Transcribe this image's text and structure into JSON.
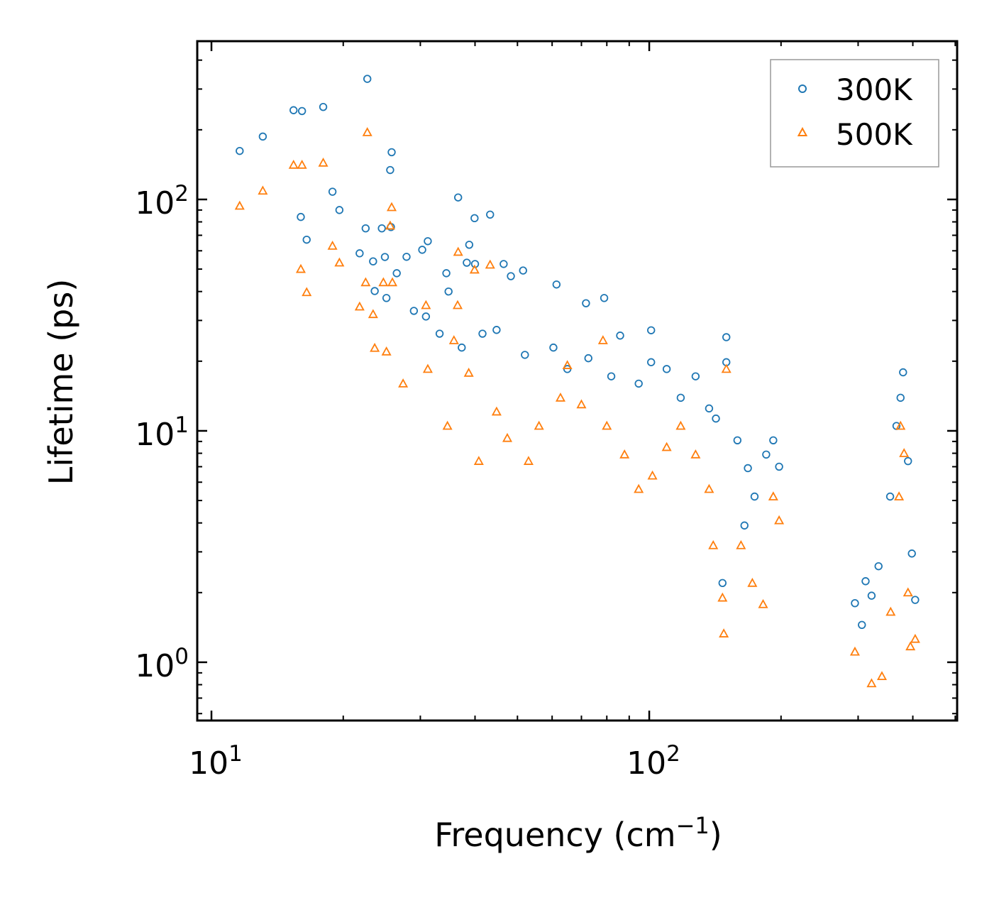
{
  "chart_data": {
    "type": "scatter",
    "title": "",
    "xlabel": "Frequency (cm",
    "xlabel_sup": "−1",
    "xlabel_end": ")",
    "ylabel": "Lifetime (ps)",
    "xscale": "log",
    "yscale": "log",
    "xlim": [
      9.28,
      505
    ],
    "ylim": [
      0.56,
      483
    ],
    "grid": false,
    "legend_position": "top-right",
    "x_ticks": [
      {
        "value": 10,
        "base": "10",
        "exp": "1"
      },
      {
        "value": 100,
        "base": "10",
        "exp": "2"
      }
    ],
    "y_ticks": [
      {
        "value": 1,
        "base": "10",
        "exp": "0"
      },
      {
        "value": 10,
        "base": "10",
        "exp": "1"
      },
      {
        "value": 100,
        "base": "10",
        "exp": "2"
      }
    ],
    "series": [
      {
        "name": "300K",
        "marker": "circle",
        "color": "#1f77b4",
        "points": [
          [
            11.6,
            162
          ],
          [
            13.1,
            187
          ],
          [
            15.4,
            243
          ],
          [
            16.1,
            241
          ],
          [
            18.0,
            251
          ],
          [
            22.7,
            332
          ],
          [
            18.9,
            108
          ],
          [
            19.6,
            90
          ],
          [
            16.0,
            84
          ],
          [
            16.5,
            67
          ],
          [
            25.8,
            160
          ],
          [
            25.6,
            134
          ],
          [
            22.5,
            75
          ],
          [
            24.5,
            75
          ],
          [
            25.7,
            76
          ],
          [
            21.8,
            58.5
          ],
          [
            23.4,
            54
          ],
          [
            24.9,
            56.4
          ],
          [
            25.1,
            37.5
          ],
          [
            23.6,
            40.2
          ],
          [
            26.5,
            48
          ],
          [
            27.9,
            56.5
          ],
          [
            31.2,
            66
          ],
          [
            30.3,
            60.6
          ],
          [
            36.6,
            102
          ],
          [
            39.9,
            83
          ],
          [
            43.3,
            86
          ],
          [
            38.8,
            63.7
          ],
          [
            38.3,
            53.3
          ],
          [
            40.0,
            52.6
          ],
          [
            46.5,
            52.6
          ],
          [
            48.3,
            46.6
          ],
          [
            51.5,
            49.3
          ],
          [
            61.4,
            42.9
          ],
          [
            71.7,
            35.6
          ],
          [
            78.9,
            37.5
          ],
          [
            34.4,
            48
          ],
          [
            34.8,
            40
          ],
          [
            29.0,
            33
          ],
          [
            30.9,
            31.2
          ],
          [
            33.2,
            26.3
          ],
          [
            37.3,
            22.9
          ],
          [
            41.6,
            26.3
          ],
          [
            44.8,
            27.3
          ],
          [
            52,
            21.3
          ],
          [
            60.4,
            22.9
          ],
          [
            65,
            18.5
          ],
          [
            72.6,
            20.6
          ],
          [
            81.9,
            17.2
          ],
          [
            85.8,
            25.8
          ],
          [
            94.6,
            16
          ],
          [
            101,
            27.2
          ],
          [
            101,
            19.8
          ],
          [
            109.6,
            18.5
          ],
          [
            118,
            13.9
          ],
          [
            127.6,
            17.2
          ],
          [
            137,
            12.5
          ],
          [
            150,
            25.4
          ],
          [
            150,
            19.8
          ],
          [
            142,
            11.3
          ],
          [
            159,
            9.1
          ],
          [
            168,
            6.9
          ],
          [
            185,
            7.9
          ],
          [
            192,
            9.1
          ],
          [
            198,
            7.0
          ],
          [
            174,
            5.2
          ],
          [
            165,
            3.9
          ],
          [
            147,
            2.2
          ],
          [
            295,
            1.8
          ],
          [
            312,
            2.24
          ],
          [
            334,
            2.6
          ],
          [
            355,
            5.2
          ],
          [
            367,
            10.5
          ],
          [
            380,
            17.9
          ],
          [
            375,
            13.9
          ],
          [
            390,
            7.4
          ],
          [
            398,
            2.95
          ],
          [
            405,
            1.86
          ],
          [
            306,
            1.45
          ],
          [
            322,
            1.94
          ]
        ]
      },
      {
        "name": "500K",
        "marker": "triangle",
        "color": "#ff7f0e",
        "points": [
          [
            11.6,
            93.8
          ],
          [
            13.1,
            109
          ],
          [
            15.4,
            141
          ],
          [
            16.1,
            141
          ],
          [
            18.0,
            144
          ],
          [
            22.7,
            195
          ],
          [
            18.9,
            63
          ],
          [
            19.6,
            53.3
          ],
          [
            16.0,
            50
          ],
          [
            16.5,
            39.7
          ],
          [
            25.8,
            92.5
          ],
          [
            25.6,
            77
          ],
          [
            21.8,
            34.4
          ],
          [
            22.5,
            43.8
          ],
          [
            23.4,
            31.9
          ],
          [
            23.6,
            22.8
          ],
          [
            24.7,
            43.8
          ],
          [
            25.1,
            22
          ],
          [
            25.9,
            43.8
          ],
          [
            27.4,
            16
          ],
          [
            30.9,
            34.9
          ],
          [
            31.2,
            18.5
          ],
          [
            36.6,
            59.3
          ],
          [
            39.9,
            49.7
          ],
          [
            43.3,
            52.2
          ],
          [
            36.5,
            34.9
          ],
          [
            35.8,
            24.6
          ],
          [
            38.7,
            17.8
          ],
          [
            34.6,
            10.5
          ],
          [
            40.8,
            7.4
          ],
          [
            44.8,
            12.1
          ],
          [
            47.4,
            9.3
          ],
          [
            53,
            7.4
          ],
          [
            56,
            10.5
          ],
          [
            62.7,
            13.9
          ],
          [
            65,
            19.2
          ],
          [
            70,
            13
          ],
          [
            78.4,
            24.6
          ],
          [
            80,
            10.5
          ],
          [
            87.8,
            7.9
          ],
          [
            94.6,
            5.6
          ],
          [
            101.7,
            6.4
          ],
          [
            109.6,
            8.5
          ],
          [
            118,
            10.5
          ],
          [
            127.6,
            7.9
          ],
          [
            137,
            5.6
          ],
          [
            150,
            18.5
          ],
          [
            140,
            3.2
          ],
          [
            147,
            1.9
          ],
          [
            148,
            1.33
          ],
          [
            162,
            3.2
          ],
          [
            172,
            2.2
          ],
          [
            182,
            1.78
          ],
          [
            192,
            5.2
          ],
          [
            198,
            4.1
          ],
          [
            295,
            1.11
          ],
          [
            322,
            0.81
          ],
          [
            340,
            0.87
          ],
          [
            356,
            1.65
          ],
          [
            372,
            5.2
          ],
          [
            375,
            10.5
          ],
          [
            382,
            8
          ],
          [
            390,
            2.0
          ],
          [
            405,
            1.26
          ],
          [
            395,
            1.17
          ]
        ]
      }
    ]
  }
}
